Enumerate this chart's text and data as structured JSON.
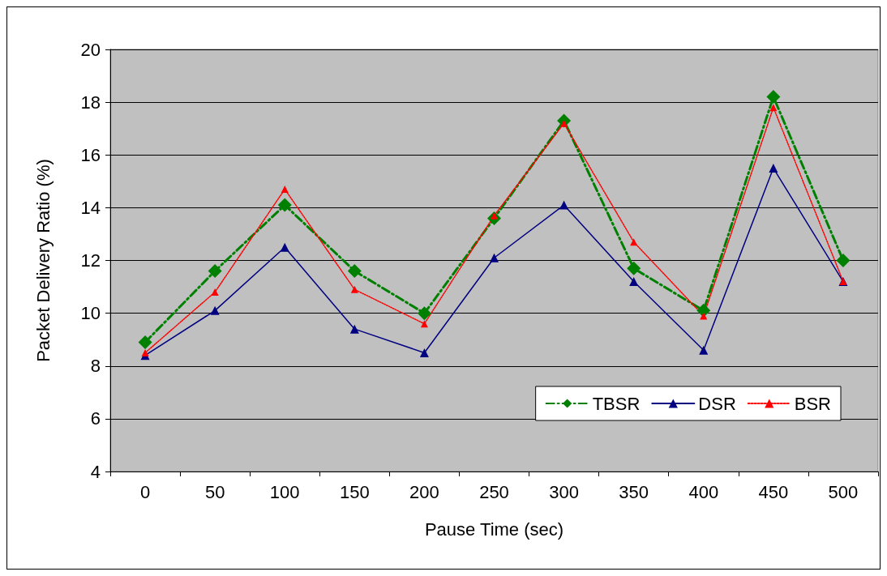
{
  "chart_data": {
    "type": "line",
    "xlabel": "Pause Time (sec)",
    "ylabel": "Packet Delivery Ratio (%)",
    "categories": [
      "0",
      "50",
      "100",
      "150",
      "200",
      "250",
      "300",
      "350",
      "400",
      "450",
      "500"
    ],
    "series": [
      {
        "name": "TBSR",
        "color": "#008000",
        "marker": "diamond",
        "line_style": "dashed",
        "values": [
          8.9,
          11.6,
          14.1,
          11.6,
          10.0,
          13.6,
          17.3,
          11.7,
          10.1,
          18.2,
          12.0
        ]
      },
      {
        "name": "DSR",
        "color": "#000080",
        "marker": "triangle",
        "line_style": "solid",
        "values": [
          8.4,
          10.1,
          12.5,
          9.4,
          8.5,
          12.1,
          14.1,
          11.2,
          8.6,
          15.5,
          11.2
        ]
      },
      {
        "name": "BSR",
        "color": "#ff0000",
        "marker": "triangle",
        "line_style": "dotted",
        "values": [
          8.5,
          10.8,
          14.7,
          10.9,
          9.6,
          13.7,
          17.2,
          12.7,
          9.9,
          17.8,
          11.2
        ]
      }
    ],
    "ylim": [
      4,
      20
    ],
    "yticks": [
      4,
      6,
      8,
      10,
      12,
      14,
      16,
      18,
      20
    ],
    "grid": "y",
    "legend": "bottom right"
  }
}
